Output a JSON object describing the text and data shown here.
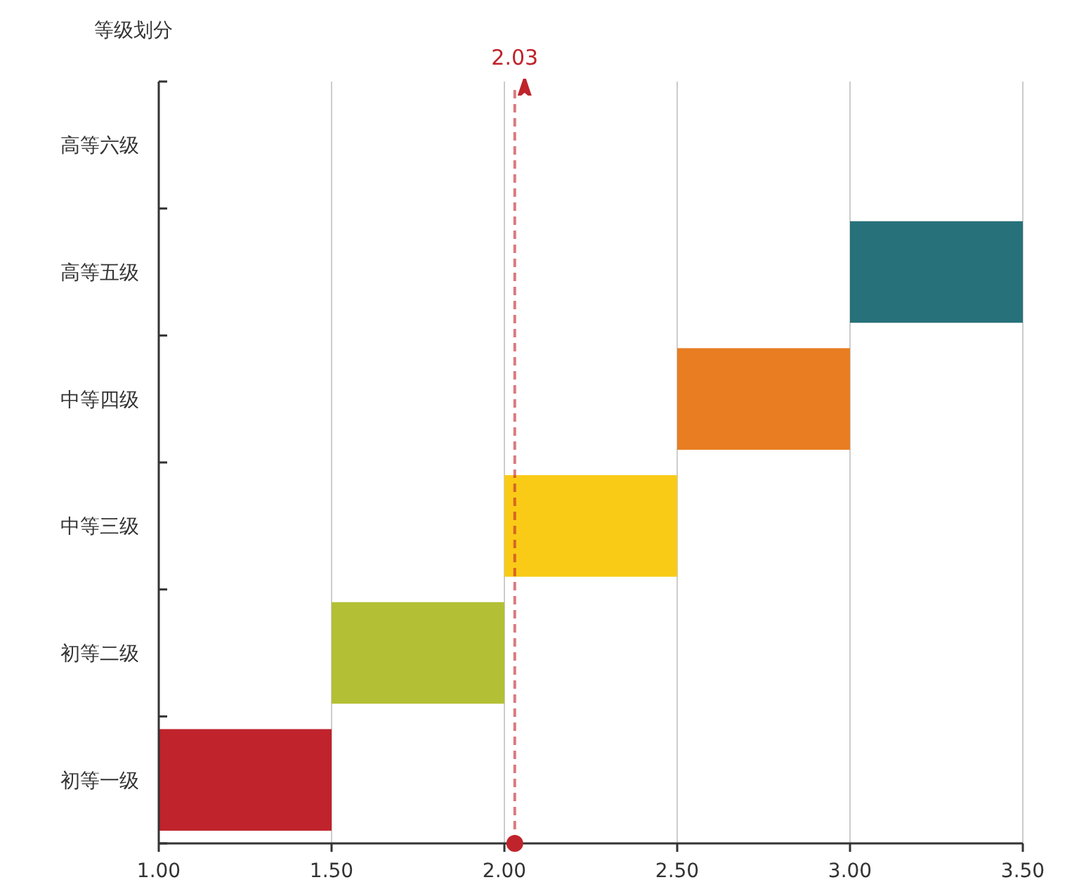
{
  "chart_data": {
    "type": "bar",
    "orientation": "horizontal",
    "ylabel": "等级划分",
    "categories": [
      "高等六级",
      "高等五级",
      "中等四级",
      "中等三级",
      "初等二级",
      "初等一级"
    ],
    "values": [
      null,
      0.5,
      0.5,
      0.5,
      0.5,
      0.5
    ],
    "base": [
      null,
      3.0,
      2.5,
      2.0,
      1.5,
      1.0
    ],
    "colors": [
      null,
      "#26717a",
      "#e87d22",
      "#f9cb17",
      "#b3c035",
      "#c0232b"
    ],
    "xlim": [
      1,
      3.5
    ],
    "xticks": [
      {
        "value": 1,
        "label": "1.00"
      },
      {
        "value": 1.5,
        "label": "1.50"
      },
      {
        "value": 2,
        "label": "2.00"
      },
      {
        "value": 2.5,
        "label": "2.50"
      },
      {
        "value": 3,
        "label": "3.00"
      },
      {
        "value": 3.5,
        "label": "3.50"
      }
    ],
    "grid": "x",
    "ref_lines": [
      {
        "axis": "x",
        "value": 2.03,
        "label": "2.03",
        "color": "#c0232b",
        "line_style": "dashed"
      }
    ]
  }
}
